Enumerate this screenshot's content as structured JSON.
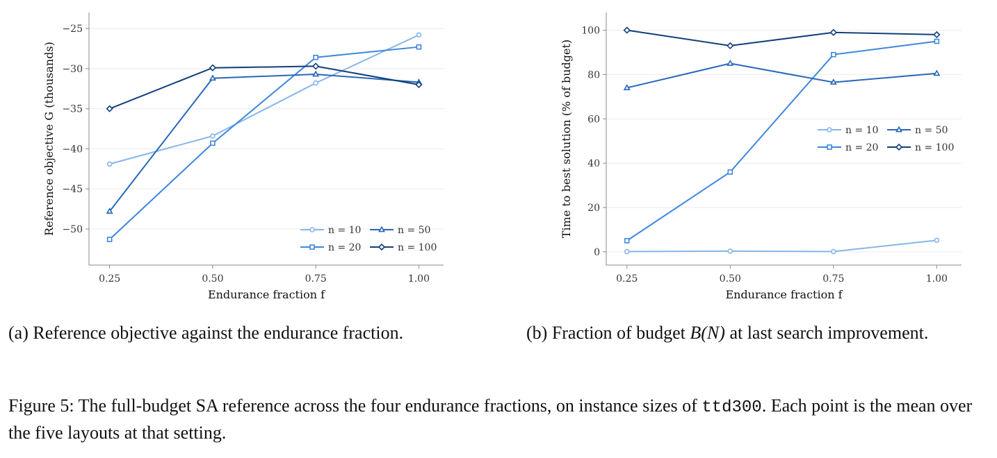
{
  "captions": {
    "a": "(a) Reference objective against the endurance fraction.",
    "b_before": "(b) Fraction of budget ",
    "b_math": "B(N)",
    "b_after": " at last search improvement.",
    "figure_main": "Figure 5: The full-budget SA reference across the four endurance fractions, on instance sizes of ",
    "figure_code": "ttd300",
    "figure_end": ". Each point is the mean over the five layouts at that setting."
  },
  "chart_data": [
    {
      "id": "a",
      "type": "line",
      "xlabel": "Endurance fraction f",
      "ylabel": "Reference objective G  (thousands)",
      "x": [
        0.25,
        0.5,
        0.75,
        1.0
      ],
      "x_tick_labels": [
        "0.25",
        "0.50",
        "0.75",
        "1.00"
      ],
      "xlim": [
        0.2,
        1.06
      ],
      "ylim": [
        -54.5,
        -23
      ],
      "y_ticks": [
        -50,
        -45,
        -40,
        -35,
        -30,
        -25
      ],
      "y_tick_labels": [
        "−50",
        "−45",
        "−40",
        "−35",
        "−30",
        "−25"
      ],
      "grid": true,
      "legend": "bottom-right",
      "series": [
        {
          "name": "n = 10",
          "marker": "circle",
          "color": "#85b6ec",
          "values": [
            -41.9,
            -38.4,
            -31.8,
            -25.8
          ]
        },
        {
          "name": "n = 20",
          "marker": "square",
          "color": "#3d86dd",
          "values": [
            -51.3,
            -39.3,
            -28.6,
            -27.3
          ]
        },
        {
          "name": "n = 50",
          "marker": "triangle",
          "color": "#2668b8",
          "values": [
            -47.8,
            -31.2,
            -30.7,
            -31.7
          ]
        },
        {
          "name": "n = 100",
          "marker": "diamond",
          "color": "#123f7a",
          "values": [
            -35.0,
            -29.9,
            -29.7,
            -32.0
          ]
        }
      ]
    },
    {
      "id": "b",
      "type": "line",
      "xlabel": "Endurance fraction f",
      "ylabel": "Time to best solution (% of budget)",
      "x": [
        0.25,
        0.5,
        0.75,
        1.0
      ],
      "x_tick_labels": [
        "0.25",
        "0.50",
        "0.75",
        "1.00"
      ],
      "xlim": [
        0.2,
        1.06
      ],
      "ylim": [
        -6,
        108
      ],
      "y_ticks": [
        0,
        20,
        40,
        60,
        80,
        100
      ],
      "y_tick_labels": [
        "0",
        "20",
        "40",
        "60",
        "80",
        "100"
      ],
      "grid": true,
      "legend": "center-right",
      "series": [
        {
          "name": "n = 10",
          "marker": "circle",
          "color": "#85b6ec",
          "values": [
            0.1,
            0.3,
            0.1,
            5.2
          ]
        },
        {
          "name": "n = 20",
          "marker": "square",
          "color": "#3d86dd",
          "values": [
            5.0,
            36.0,
            89.0,
            95.0
          ]
        },
        {
          "name": "n = 50",
          "marker": "triangle",
          "color": "#2668b8",
          "values": [
            74.0,
            85.0,
            76.5,
            80.5
          ]
        },
        {
          "name": "n = 100",
          "marker": "diamond",
          "color": "#123f7a",
          "values": [
            100.0,
            93.0,
            99.0,
            98.0
          ]
        }
      ]
    }
  ]
}
